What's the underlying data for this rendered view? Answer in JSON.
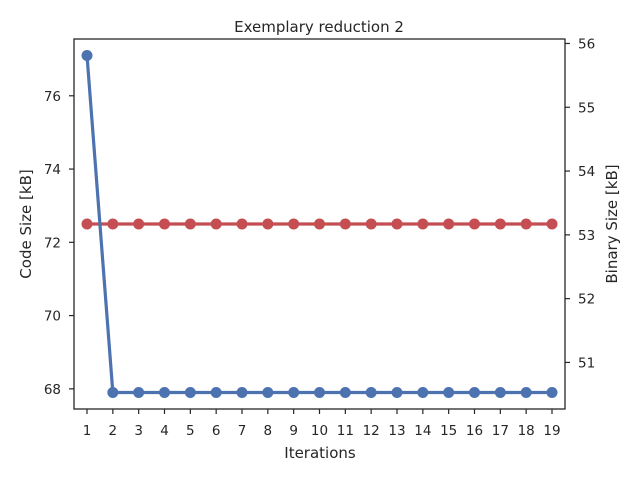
{
  "chart_data": {
    "type": "line",
    "title": "Exemplary reduction 2",
    "xlabel": "Iterations",
    "ylabel": "Code Size [kB]",
    "y2label": "Binary Size [kB]",
    "x": [
      1,
      2,
      3,
      4,
      5,
      6,
      7,
      8,
      9,
      10,
      11,
      12,
      13,
      14,
      15,
      16,
      17,
      18,
      19
    ],
    "ylim": [
      67.45,
      77.55
    ],
    "y2lim": [
      50.27,
      56.07
    ],
    "yticks": [
      68,
      70,
      72,
      74,
      76
    ],
    "y2ticks": [
      51,
      52,
      53,
      54,
      55,
      56
    ],
    "grid": false,
    "series": [
      {
        "axis": "left",
        "color": "#4c72b0",
        "values": [
          77.1,
          67.9,
          67.9,
          67.9,
          67.9,
          67.9,
          67.9,
          67.9,
          67.9,
          67.9,
          67.9,
          67.9,
          67.9,
          67.9,
          67.9,
          67.9,
          67.9,
          67.9,
          67.9
        ]
      },
      {
        "axis": "right",
        "color": "#c44e52",
        "values": [
          53.17,
          53.17,
          53.17,
          53.17,
          53.17,
          53.17,
          53.17,
          53.17,
          53.17,
          53.17,
          53.17,
          53.17,
          53.17,
          53.17,
          53.17,
          53.17,
          53.17,
          53.17,
          53.17
        ]
      }
    ]
  }
}
